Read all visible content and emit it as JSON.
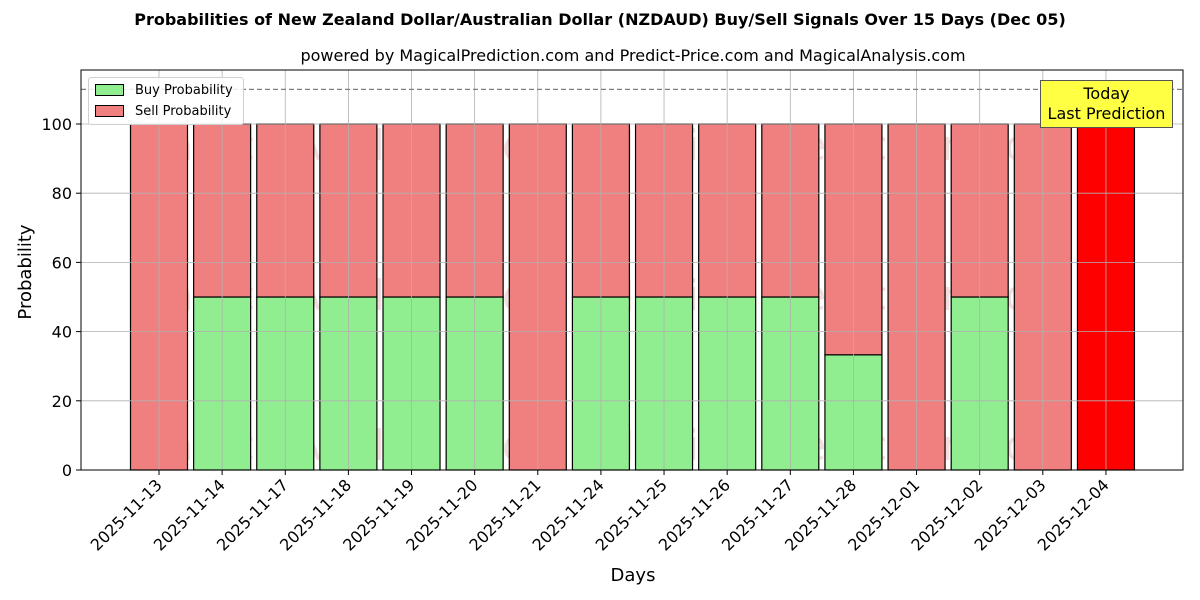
{
  "chart_data": {
    "type": "bar",
    "stacked": true,
    "title": "Probabilities of New Zealand Dollar/Australian Dollar (NZDAUD) Buy/Sell Signals Over 15 Days (Dec 05)",
    "subtitle": "powered by MagicalPrediction.com and Predict-Price.com and MagicalAnalysis.com",
    "xlabel": "Days",
    "ylabel": "Probability",
    "ylim": [
      0,
      115
    ],
    "yticks": [
      0,
      20,
      40,
      60,
      80,
      100
    ],
    "grid": true,
    "reference_line": {
      "y": 110,
      "style": "dashed",
      "color": "#808080"
    },
    "legend_position": "upper left",
    "categories": [
      "2025-11-13",
      "2025-11-14",
      "2025-11-17",
      "2025-11-18",
      "2025-11-19",
      "2025-11-20",
      "2025-11-21",
      "2025-11-24",
      "2025-11-25",
      "2025-11-26",
      "2025-11-27",
      "2025-11-28",
      "2025-12-01",
      "2025-12-02",
      "2025-12-03",
      "2025-12-04"
    ],
    "series": [
      {
        "name": "Buy Probability",
        "color": "#90ee90",
        "values": [
          0,
          50,
          50,
          50,
          50,
          50,
          0,
          50,
          50,
          50,
          50,
          33.3,
          0,
          50,
          0,
          0
        ]
      },
      {
        "name": "Sell Probability",
        "color": "#f08080",
        "values": [
          100,
          50,
          50,
          50,
          50,
          50,
          100,
          50,
          50,
          50,
          50,
          66.7,
          100,
          50,
          100,
          100
        ]
      }
    ],
    "highlight": {
      "index": 15,
      "color": "#ff0000",
      "annotation": "Today\nLast Prediction"
    }
  },
  "legend": {
    "buy_label": "Buy Probability",
    "sell_label": "Sell Probability"
  },
  "annotation": {
    "line1": "Today",
    "line2": "Last Prediction"
  },
  "watermarks": [
    "MagicalAnalysis.com",
    "MagicalPrediction.com"
  ]
}
